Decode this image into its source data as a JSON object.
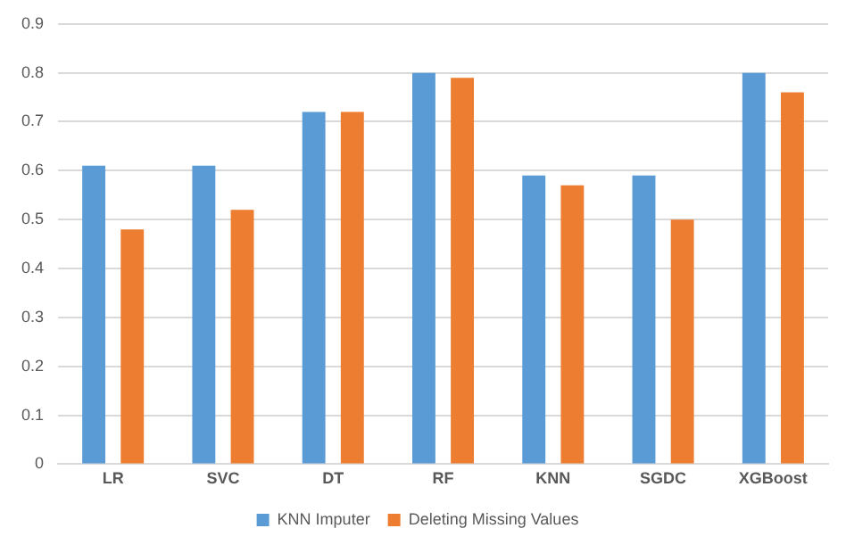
{
  "chart_data": {
    "type": "bar",
    "categories": [
      "LR",
      "SVC",
      "DT",
      "RF",
      "KNN",
      "SGDC",
      "XGBoost"
    ],
    "series": [
      {
        "name": "KNN Imputer",
        "color": "#5b9bd5",
        "values": [
          0.61,
          0.61,
          0.72,
          0.8,
          0.59,
          0.59,
          0.8
        ]
      },
      {
        "name": "Deleting Missing Values",
        "color": "#ed7d31",
        "values": [
          0.48,
          0.52,
          0.72,
          0.79,
          0.57,
          0.5,
          0.76
        ]
      }
    ],
    "ylim": [
      0,
      0.9
    ],
    "yticks": [
      0,
      0.1,
      0.2,
      0.3,
      0.4,
      0.5,
      0.6,
      0.7,
      0.8,
      0.9
    ],
    "grid": "y",
    "legend": "bottom"
  }
}
